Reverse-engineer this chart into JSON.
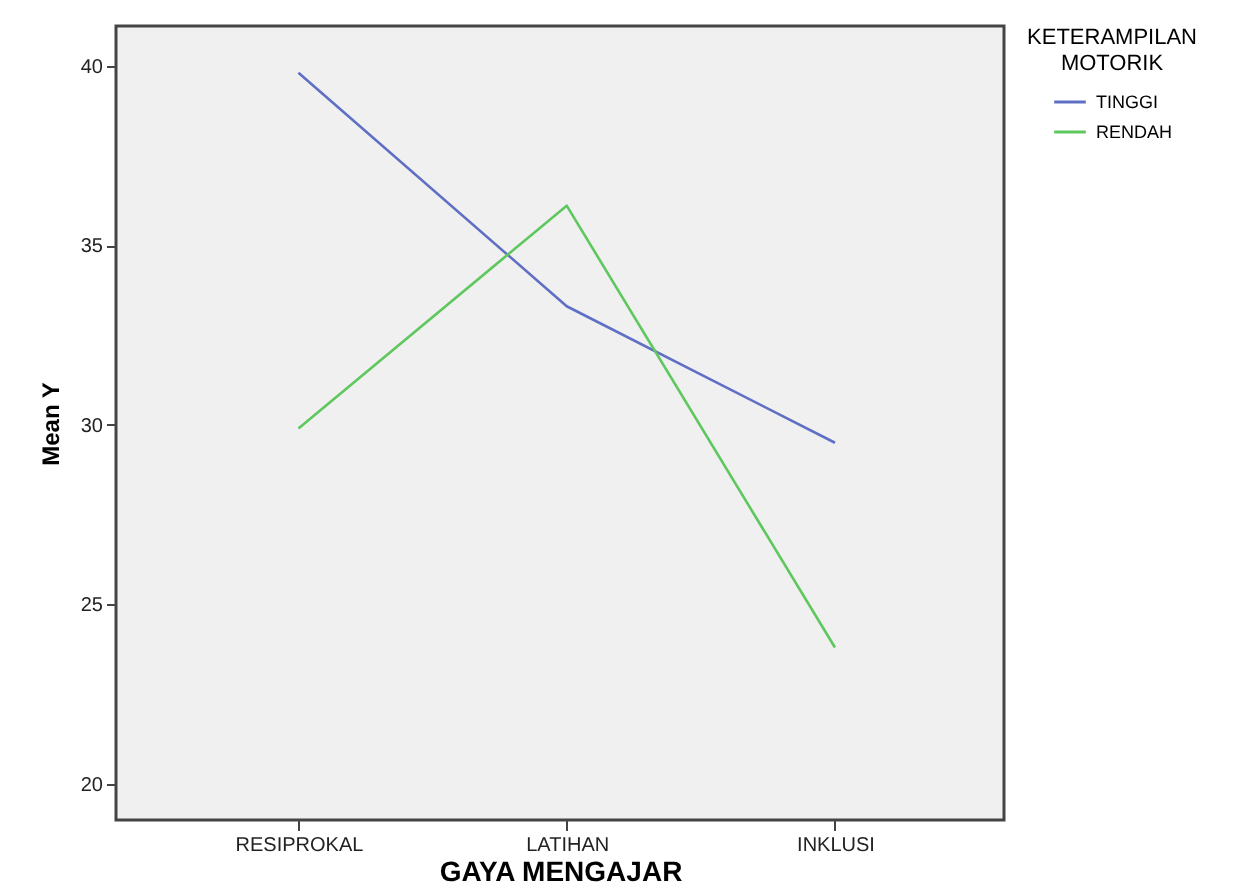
{
  "chart_data": {
    "type": "line",
    "xlabel": "GAYA MENGAJAR",
    "ylabel": "Mean Y",
    "legend_title": "KETERAMPILAN MOTORIK",
    "categories": [
      "RESIPROKAL",
      "LATIHAN",
      "INKLUSI"
    ],
    "series": [
      {
        "name": "TINGGI",
        "color": "#5f6fc4",
        "values": [
          39.8,
          33.3,
          29.5
        ]
      },
      {
        "name": "RENDAH",
        "color": "#5ec85e",
        "values": [
          29.9,
          36.1,
          23.8
        ]
      }
    ],
    "ylim": [
      19,
      41.1
    ],
    "yticks": [
      20,
      25,
      30,
      35,
      40
    ],
    "grid": false,
    "legend": "top right",
    "marker": "none",
    "line_style": "solid"
  }
}
